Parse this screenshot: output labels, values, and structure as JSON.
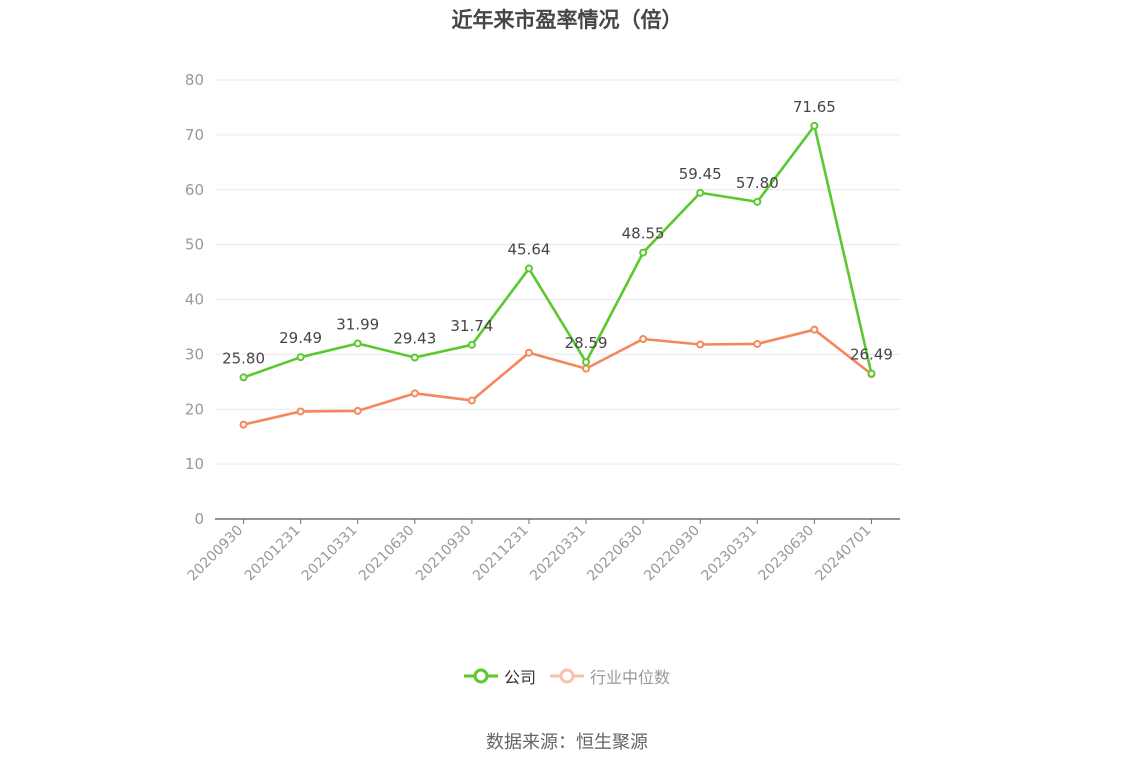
{
  "chart_data": {
    "type": "line",
    "title": "近年来市盈率情况（倍）",
    "categories": [
      "20200930",
      "20201231",
      "20210331",
      "20210630",
      "20210930",
      "20211231",
      "20220331",
      "20220630",
      "20220930",
      "20230331",
      "20230630",
      "20240701"
    ],
    "series": [
      {
        "name": "公司",
        "color": "#5ac92f",
        "values": [
          25.8,
          29.49,
          31.99,
          29.43,
          31.74,
          45.64,
          28.59,
          48.55,
          59.45,
          57.8,
          71.65,
          26.49
        ],
        "labels": [
          "25.80",
          "29.49",
          "31.99",
          "29.43",
          "31.74",
          "45.64",
          "28.59",
          "48.55",
          "59.45",
          "57.80",
          "71.65",
          "26.49"
        ]
      },
      {
        "name": "行业中位数",
        "color": "#f5875c",
        "values": [
          17.2,
          19.6,
          19.7,
          22.9,
          21.6,
          30.3,
          27.4,
          32.8,
          31.8,
          31.9,
          34.5,
          26.4
        ]
      }
    ],
    "ylim": [
      0,
      80
    ],
    "yticks": [
      0,
      10,
      20,
      30,
      40,
      50,
      60,
      70,
      80
    ],
    "grid": true,
    "legend_position": "bottom-center",
    "xlabel": "",
    "ylabel": ""
  },
  "source_note": "数据来源：恒生聚源"
}
